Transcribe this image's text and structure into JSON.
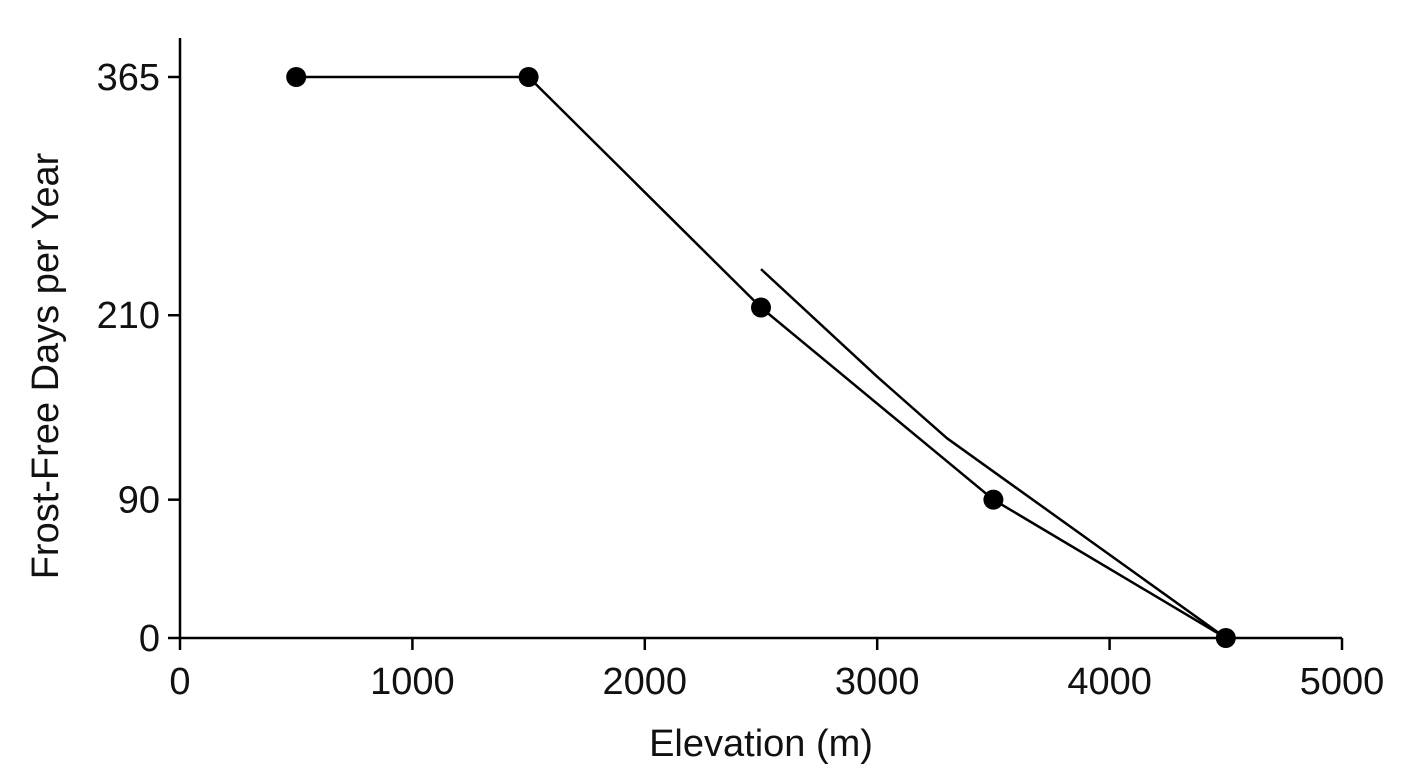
{
  "chart_data": {
    "type": "line",
    "title": "",
    "xlabel": "Elevation (m)",
    "ylabel": "Frost-Free Days per Year",
    "xlim": [
      0,
      5000
    ],
    "ylim": [
      0,
      365
    ],
    "x_ticks": [
      0,
      1000,
      2000,
      3000,
      4000,
      5000
    ],
    "x_tick_labels": [
      "0",
      "1000",
      "2000",
      "3000",
      "4000",
      "5000"
    ],
    "y_ticks": [
      0,
      90,
      210,
      365
    ],
    "y_tick_labels": [
      "0",
      "90",
      "210",
      "365"
    ],
    "grid": false,
    "legend": "none",
    "series": [
      {
        "line_color": "#000000",
        "markers": true,
        "x": [
          500,
          1500,
          2500,
          3500,
          4500
        ],
        "y": [
          365,
          365,
          215,
          90,
          0
        ]
      },
      {
        "line_color": "#000000",
        "markers": false,
        "x": [
          2500,
          3000,
          3300,
          4500
        ],
        "y": [
          240,
          170,
          130,
          0
        ]
      }
    ]
  }
}
